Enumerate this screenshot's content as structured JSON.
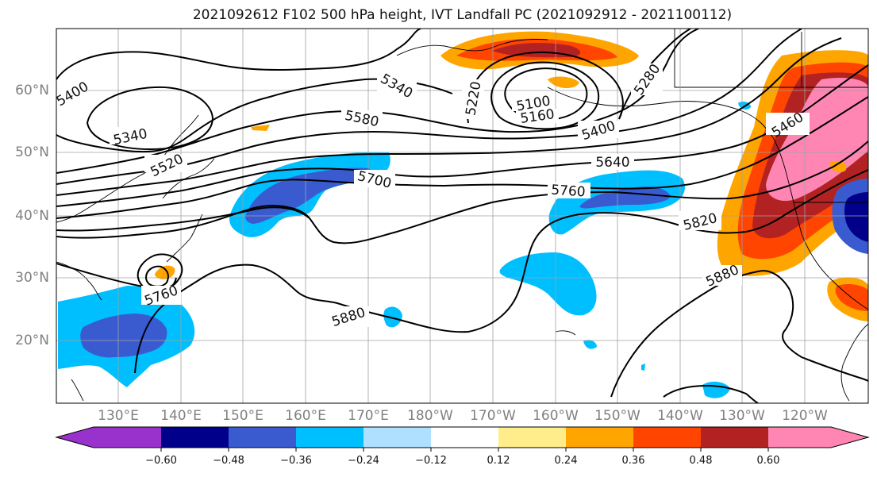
{
  "title": "2021092612 F102 500 hPa height, IVT Landfall PC (2021092912 - 2021100112)",
  "lat_labels": [
    "60°N",
    "50°N",
    "40°N",
    "30°N",
    "20°N"
  ],
  "lon_labels": [
    "130°E",
    "140°E",
    "150°E",
    "160°E",
    "170°E",
    "180°W",
    "170°W",
    "160°W",
    "150°W",
    "140°W",
    "130°W",
    "120°W"
  ],
  "contour_labels": [
    "5400",
    "5340",
    "5520",
    "5340",
    "5580",
    "5220",
    "5100",
    "5160",
    "5280",
    "5400",
    "5460",
    "5700",
    "5640",
    "5760",
    "5820",
    "5880",
    "5880",
    "5760"
  ],
  "colorbar": {
    "ticks": [
      "−0.60",
      "−0.48",
      "−0.36",
      "−0.24",
      "−0.12",
      "0.12",
      "0.24",
      "0.36",
      "0.48",
      "0.60"
    ],
    "colors": [
      "#9932cc",
      "#00008b",
      "#3a5bd0",
      "#00bfff",
      "#b0e0ff",
      "#ffffff",
      "#ffec8b",
      "#ffa500",
      "#ff4500",
      "#b22222",
      "#ff85b3"
    ]
  }
}
